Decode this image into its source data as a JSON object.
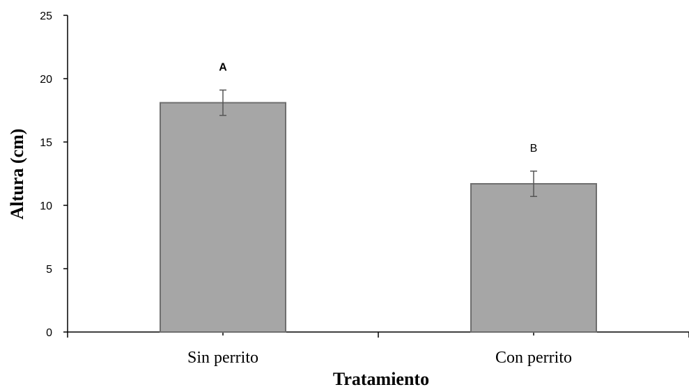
{
  "chart_data": {
    "type": "bar",
    "categories": [
      "Sin perrito",
      "Con perrito"
    ],
    "values": [
      18.1,
      11.7
    ],
    "error": [
      1.0,
      1.0
    ],
    "significance_labels": [
      "A",
      "B"
    ],
    "xlabel": "Tratamiento",
    "ylabel": "Altura (cm)",
    "ylim": [
      0,
      25
    ],
    "yticks": [
      0,
      5,
      10,
      15,
      20,
      25
    ],
    "bar_color": "#a6a6a6",
    "bar_edge_color": "#6e6e6e",
    "grid": false
  }
}
